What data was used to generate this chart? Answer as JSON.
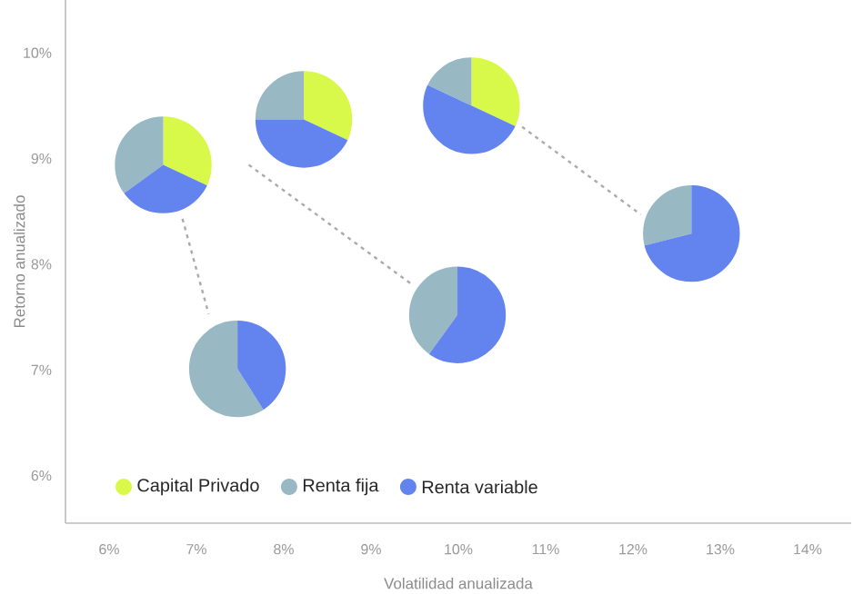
{
  "chart_data": [
    {
      "type": "scatter",
      "xlabel": "Volatilidad anualizada",
      "ylabel": "Retorno anualizado",
      "xlim": [
        5.5,
        14.5
      ],
      "ylim": [
        5.55,
        10.5
      ],
      "xticks": [
        {
          "value": 6,
          "label": "6%"
        },
        {
          "value": 7,
          "label": "7%"
        },
        {
          "value": 8,
          "label": "8%"
        },
        {
          "value": 9,
          "label": "9%"
        },
        {
          "value": 10,
          "label": "10%"
        },
        {
          "value": 11,
          "label": "11%"
        },
        {
          "value": 12,
          "label": "12%"
        },
        {
          "value": 13,
          "label": "13%"
        },
        {
          "value": 14,
          "label": "14%"
        }
      ],
      "yticks": [
        {
          "value": 6,
          "label": "6%"
        },
        {
          "value": 7,
          "label": "7%"
        },
        {
          "value": 8,
          "label": "8%"
        },
        {
          "value": 9,
          "label": "9%"
        },
        {
          "value": 10,
          "label": "10%"
        }
      ],
      "series": [
        {
          "type": "line",
          "color": "#aaaaaa",
          "line_style": "dashed",
          "x": [
            6.84,
            7.14,
            7.4,
            7.6,
            9.45,
            9.5,
            10.73,
            12.09
          ],
          "values": [
            8.43,
            7.53,
            null,
            8.94,
            7.82,
            null,
            9.3,
            8.47
          ]
        },
        {
          "type": "scatter",
          "x": [
            6.62,
            7.47,
            8.23,
            9.99,
            10.15,
            12.67
          ],
          "values": [
            8.94,
            7.01,
            9.37,
            7.52,
            9.5,
            8.29
          ]
        }
      ]
    },
    {
      "type": "pie",
      "categories": [
        "Capital Privado",
        "Renta fija",
        "Renta variable"
      ],
      "values": [
        32,
        35,
        33
      ],
      "colors": [
        "#d8f84a",
        "#98b9c4",
        "#6383ee"
      ],
      "legend": "bottom right"
    },
    {
      "type": "pie",
      "categories": [
        null,
        null,
        null
      ],
      "values": [
        0,
        59,
        41
      ],
      "colors": [
        "#d8f84a",
        "#98b9c4",
        "#6383ee"
      ]
    },
    {
      "type": "pie",
      "categories": [
        null,
        null,
        null
      ],
      "values": [
        32,
        25,
        43
      ],
      "colors": [
        "#d8f84a",
        "#98b9c4",
        "#6383ee"
      ]
    },
    {
      "type": "pie",
      "categories": [
        null,
        null,
        null
      ],
      "values": [
        0,
        40,
        60
      ],
      "colors": [
        "#d8f84a",
        "#98b9c4",
        "#6383ee"
      ]
    },
    {
      "type": "pie",
      "categories": [
        null,
        null,
        null
      ],
      "values": [
        32,
        18,
        50
      ],
      "colors": [
        "#d8f84a",
        "#98b9c4",
        "#6383ee"
      ]
    },
    {
      "type": "pie",
      "categories": [
        null,
        null,
        null
      ],
      "values": [
        0,
        29,
        71
      ],
      "colors": [
        "#d8f84a",
        "#98b9c4",
        "#6383ee"
      ]
    }
  ]
}
